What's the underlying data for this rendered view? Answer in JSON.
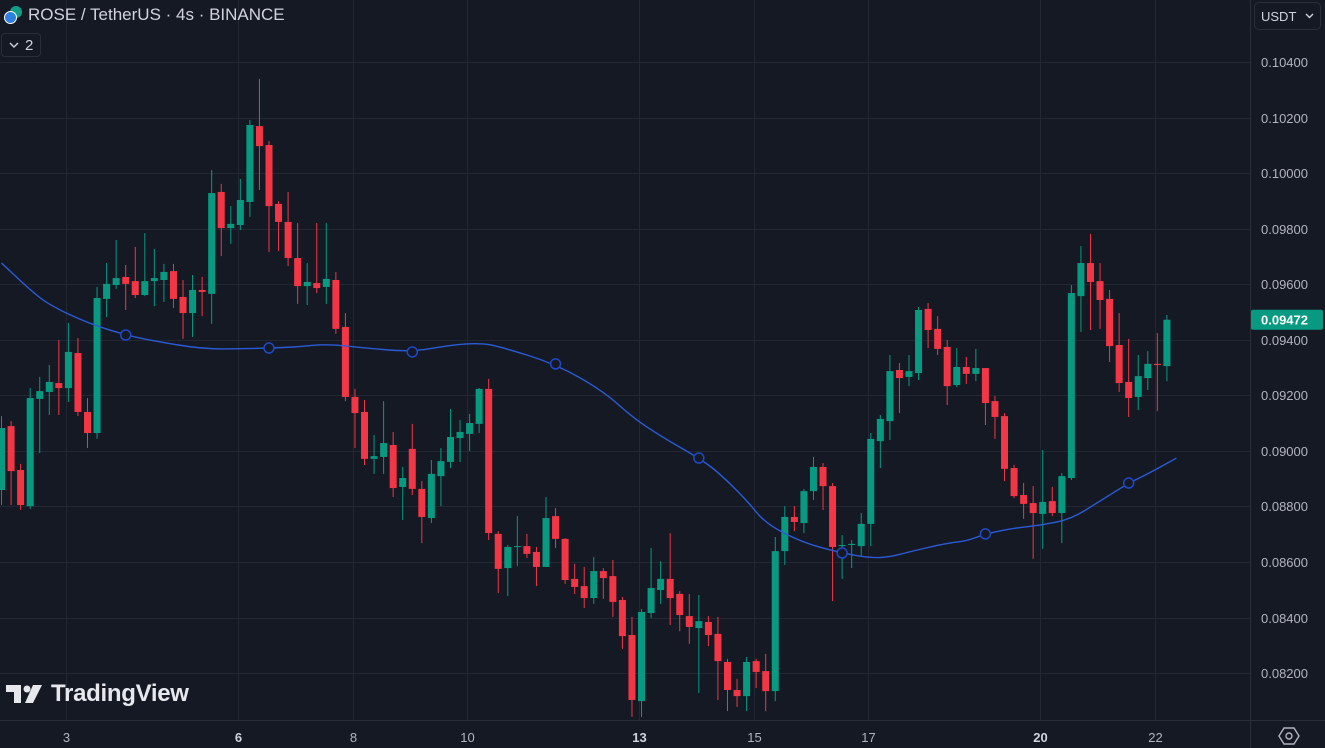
{
  "header": {
    "title": "ROSE / TetherUS · 4s · BINANCE",
    "indicators_count": "2",
    "currency": "USDT",
    "watermark": "TradingView"
  },
  "colors": {
    "background": "#151924",
    "grid": "#232733",
    "up": "#089981",
    "down": "#f23645",
    "ma": "#2a5bd7",
    "text": "#b2b5be"
  },
  "chart_data": {
    "type": "candlestick",
    "title": "ROSE / TetherUS · 4s · BINANCE",
    "interval": "4h",
    "last_price": "0.09472",
    "ylim": [
      0.08031,
      0.10623
    ],
    "xlim": [
      -0.16,
      130.7
    ],
    "y_ticks": [
      "0.10400",
      "0.10200",
      "0.10000",
      "0.09800",
      "0.09600",
      "0.09400",
      "0.09200",
      "0.09000",
      "0.08800",
      "0.08600",
      "0.08400",
      "0.08200"
    ],
    "x_ticks": [
      {
        "label": "3",
        "index": 6.75,
        "bold": false
      },
      {
        "label": "6",
        "index": 24.75,
        "bold": true
      },
      {
        "label": "8",
        "index": 36.75,
        "bold": false
      },
      {
        "label": "10",
        "index": 48.75,
        "bold": false
      },
      {
        "label": "13",
        "index": 66.75,
        "bold": true
      },
      {
        "label": "15",
        "index": 78.75,
        "bold": false
      },
      {
        "label": "17",
        "index": 90.75,
        "bold": false
      },
      {
        "label": "20",
        "index": 108.75,
        "bold": true
      },
      {
        "label": "22",
        "index": 120.75,
        "bold": false
      }
    ],
    "ohlc_columns": [
      "open",
      "high",
      "low",
      "close"
    ],
    "candles": [
      [
        0.08859,
        0.09125,
        0.08805,
        0.09082
      ],
      [
        0.09089,
        0.09107,
        0.08805,
        0.08927
      ],
      [
        0.08931,
        0.08953,
        0.08787,
        0.08805
      ],
      [
        0.08801,
        0.09226,
        0.08791,
        0.0919
      ],
      [
        0.09187,
        0.09266,
        0.08992,
        0.09215
      ],
      [
        0.09212,
        0.09309,
        0.09129,
        0.09248
      ],
      [
        0.09244,
        0.09399,
        0.09129,
        0.09226
      ],
      [
        0.09226,
        0.0946,
        0.09176,
        0.09356
      ],
      [
        0.09352,
        0.09406,
        0.09125,
        0.0914
      ],
      [
        0.0914,
        0.0919,
        0.0901,
        0.09064
      ],
      [
        0.09064,
        0.0959,
        0.09043,
        0.0955
      ],
      [
        0.09547,
        0.09676,
        0.09482,
        0.09601
      ],
      [
        0.09597,
        0.09759,
        0.09583,
        0.09622
      ],
      [
        0.09626,
        0.09669,
        0.09507,
        0.09601
      ],
      [
        0.09611,
        0.09734,
        0.0955,
        0.09561
      ],
      [
        0.09561,
        0.09784,
        0.09557,
        0.09611
      ],
      [
        0.09611,
        0.09727,
        0.09521,
        0.09622
      ],
      [
        0.09615,
        0.09673,
        0.09536,
        0.09644
      ],
      [
        0.09647,
        0.09673,
        0.09514,
        0.09547
      ],
      [
        0.09554,
        0.09615,
        0.09403,
        0.09496
      ],
      [
        0.09496,
        0.09633,
        0.0941,
        0.09579
      ],
      [
        0.09579,
        0.09626,
        0.09485,
        0.09572
      ],
      [
        0.09565,
        0.10011,
        0.09457,
        0.09928
      ],
      [
        0.09932,
        0.09961,
        0.09701,
        0.09802
      ],
      [
        0.09802,
        0.09881,
        0.09745,
        0.09817
      ],
      [
        0.09813,
        0.09979,
        0.09795,
        0.09903
      ],
      [
        0.09896,
        0.10191,
        0.09842,
        0.10173
      ],
      [
        0.10169,
        0.10339,
        0.09939,
        0.10097
      ],
      [
        0.10101,
        0.10115,
        0.09716,
        0.09881
      ],
      [
        0.09889,
        0.09899,
        0.09719,
        0.09824
      ],
      [
        0.09824,
        0.09932,
        0.09665,
        0.09694
      ],
      [
        0.09694,
        0.0982,
        0.09529,
        0.09593
      ],
      [
        0.09593,
        0.09676,
        0.09525,
        0.09608
      ],
      [
        0.09604,
        0.0982,
        0.09568,
        0.09586
      ],
      [
        0.0959,
        0.0982,
        0.09529,
        0.09619
      ],
      [
        0.09615,
        0.09644,
        0.09421,
        0.09439
      ],
      [
        0.09446,
        0.09496,
        0.09179,
        0.09194
      ],
      [
        0.09194,
        0.09223,
        0.0901,
        0.09136
      ],
      [
        0.0914,
        0.09183,
        0.08949,
        0.08971
      ],
      [
        0.08971,
        0.09057,
        0.08917,
        0.08981
      ],
      [
        0.08978,
        0.09179,
        0.08917,
        0.09028
      ],
      [
        0.09021,
        0.09068,
        0.08834,
        0.08866
      ],
      [
        0.0887,
        0.08942,
        0.08751,
        0.08902
      ],
      [
        0.09007,
        0.09097,
        0.08841,
        0.08863
      ],
      [
        0.08863,
        0.08891,
        0.08668,
        0.08762
      ],
      [
        0.08758,
        0.08967,
        0.0874,
        0.08917
      ],
      [
        0.08909,
        0.0901,
        0.08801,
        0.08963
      ],
      [
        0.0896,
        0.09151,
        0.08938,
        0.0905
      ],
      [
        0.09046,
        0.09111,
        0.0896,
        0.09068
      ],
      [
        0.09061,
        0.09133,
        0.08999,
        0.091
      ],
      [
        0.09097,
        0.09226,
        0.09064,
        0.09223
      ],
      [
        0.09223,
        0.09259,
        0.08679,
        0.08704
      ],
      [
        0.08701,
        0.08711,
        0.08488,
        0.08575
      ],
      [
        0.08578,
        0.08661,
        0.08477,
        0.08654
      ],
      [
        0.08654,
        0.08765,
        0.08585,
        0.08657
      ],
      [
        0.08657,
        0.08701,
        0.08614,
        0.08629
      ],
      [
        0.08636,
        0.08654,
        0.08513,
        0.08582
      ],
      [
        0.08582,
        0.08834,
        0.08582,
        0.08758
      ],
      [
        0.08765,
        0.08794,
        0.0865,
        0.08683
      ],
      [
        0.08683,
        0.08686,
        0.08521,
        0.08535
      ],
      [
        0.08539,
        0.08593,
        0.08485,
        0.0851
      ],
      [
        0.08513,
        0.08582,
        0.08434,
        0.0847
      ],
      [
        0.0847,
        0.08618,
        0.08449,
        0.08567
      ],
      [
        0.08567,
        0.08578,
        0.08467,
        0.08542
      ],
      [
        0.08549,
        0.08607,
        0.08402,
        0.08456
      ],
      [
        0.08463,
        0.08474,
        0.08287,
        0.08333
      ],
      [
        0.08337,
        0.08402,
        0.08042,
        0.08103
      ],
      [
        0.08099,
        0.08431,
        0.08042,
        0.0842
      ],
      [
        0.08416,
        0.0865,
        0.08398,
        0.08506
      ],
      [
        0.08499,
        0.08603,
        0.08449,
        0.08539
      ],
      [
        0.08539,
        0.08704,
        0.08373,
        0.0847
      ],
      [
        0.08485,
        0.08495,
        0.08351,
        0.08409
      ],
      [
        0.08405,
        0.08485,
        0.08305,
        0.08366
      ],
      [
        0.08362,
        0.08481,
        0.08128,
        0.08387
      ],
      [
        0.08384,
        0.08405,
        0.08297,
        0.08337
      ],
      [
        0.08341,
        0.08402,
        0.08103,
        0.08243
      ],
      [
        0.0824,
        0.08251,
        0.08063,
        0.08139
      ],
      [
        0.08139,
        0.08179,
        0.08078,
        0.08117
      ],
      [
        0.08117,
        0.08258,
        0.08063,
        0.0824
      ],
      [
        0.08243,
        0.08251,
        0.08146,
        0.08204
      ],
      [
        0.08207,
        0.08269,
        0.08063,
        0.08135
      ],
      [
        0.08135,
        0.0869,
        0.08099,
        0.08639
      ],
      [
        0.08639,
        0.08801,
        0.08589,
        0.08762
      ],
      [
        0.08762,
        0.08801,
        0.08711,
        0.08744
      ],
      [
        0.0874,
        0.08863,
        0.08704,
        0.08855
      ],
      [
        0.08855,
        0.08978,
        0.08823,
        0.08942
      ],
      [
        0.08942,
        0.08956,
        0.08787,
        0.08873
      ],
      [
        0.08873,
        0.08884,
        0.08459,
        0.08654
      ],
      [
        0.08657,
        0.08697,
        0.08539,
        0.08661
      ],
      [
        0.08661,
        0.08679,
        0.08578,
        0.08665
      ],
      [
        0.08657,
        0.08776,
        0.08618,
        0.08737
      ],
      [
        0.08737,
        0.09064,
        0.08657,
        0.09043
      ],
      [
        0.09035,
        0.09129,
        0.08938,
        0.09115
      ],
      [
        0.09107,
        0.09345,
        0.09039,
        0.09287
      ],
      [
        0.09291,
        0.09316,
        0.09136,
        0.09262
      ],
      [
        0.09266,
        0.09345,
        0.09233,
        0.09287
      ],
      [
        0.0928,
        0.09518,
        0.09255,
        0.09507
      ],
      [
        0.09511,
        0.09532,
        0.0937,
        0.09435
      ],
      [
        0.09439,
        0.09485,
        0.09345,
        0.09367
      ],
      [
        0.09374,
        0.09399,
        0.09165,
        0.09233
      ],
      [
        0.09237,
        0.0937,
        0.0923,
        0.09302
      ],
      [
        0.09302,
        0.09338,
        0.09241,
        0.09277
      ],
      [
        0.09277,
        0.09367,
        0.09251,
        0.09298
      ],
      [
        0.09298,
        0.09298,
        0.09093,
        0.09172
      ],
      [
        0.09179,
        0.09197,
        0.09043,
        0.09122
      ],
      [
        0.09125,
        0.09136,
        0.08891,
        0.08935
      ],
      [
        0.08938,
        0.08949,
        0.0883,
        0.08837
      ],
      [
        0.08841,
        0.08884,
        0.08755,
        0.08809
      ],
      [
        0.08812,
        0.08873,
        0.08611,
        0.08776
      ],
      [
        0.08773,
        0.09003,
        0.08647,
        0.08816
      ],
      [
        0.08819,
        0.0887,
        0.08765,
        0.08776
      ],
      [
        0.08776,
        0.0892,
        0.08668,
        0.08909
      ],
      [
        0.08902,
        0.09597,
        0.08895,
        0.09568
      ],
      [
        0.09557,
        0.09737,
        0.09428,
        0.09676
      ],
      [
        0.09676,
        0.09781,
        0.09435,
        0.09608
      ],
      [
        0.09611,
        0.09676,
        0.09439,
        0.09543
      ],
      [
        0.09547,
        0.09579,
        0.0932,
        0.09377
      ],
      [
        0.09381,
        0.09496,
        0.09212,
        0.09244
      ],
      [
        0.09248,
        0.09403,
        0.09122,
        0.0919
      ],
      [
        0.09194,
        0.09345,
        0.09147,
        0.09269
      ],
      [
        0.09262,
        0.09359,
        0.09219,
        0.09313
      ],
      [
        0.09313,
        0.09424,
        0.09143,
        0.09309
      ],
      [
        0.09305,
        0.09489,
        0.09251,
        0.09472
      ]
    ],
    "series": [
      {
        "name": "Moving Average",
        "type": "line",
        "marker_every": 15,
        "marker_start": 13,
        "points": [
          [
            0,
            0.09676
          ],
          [
            3,
            0.09579
          ],
          [
            5,
            0.09525
          ],
          [
            9,
            0.0946
          ],
          [
            13,
            0.09417
          ],
          [
            16,
            0.09395
          ],
          [
            21,
            0.09367
          ],
          [
            25,
            0.09367
          ],
          [
            28,
            0.0937
          ],
          [
            31,
            0.09374
          ],
          [
            34,
            0.09385
          ],
          [
            38,
            0.0937
          ],
          [
            43,
            0.09356
          ],
          [
            47,
            0.09381
          ],
          [
            50,
            0.09388
          ],
          [
            52,
            0.09377
          ],
          [
            58,
            0.09313
          ],
          [
            63,
            0.09215
          ],
          [
            66,
            0.09122
          ],
          [
            69,
            0.09053
          ],
          [
            73,
            0.08974
          ],
          [
            75,
            0.08924
          ],
          [
            78,
            0.08823
          ],
          [
            80,
            0.08737
          ],
          [
            84,
            0.08668
          ],
          [
            88,
            0.08632
          ],
          [
            91,
            0.08614
          ],
          [
            93,
            0.08618
          ],
          [
            95,
            0.08636
          ],
          [
            99,
            0.08668
          ],
          [
            101,
            0.08675
          ],
          [
            103,
            0.08701
          ],
          [
            106,
            0.08722
          ],
          [
            109,
            0.08733
          ],
          [
            112,
            0.08755
          ],
          [
            115,
            0.08819
          ],
          [
            118,
            0.08884
          ],
          [
            120,
            0.08917
          ],
          [
            123,
            0.08974
          ]
        ]
      }
    ]
  }
}
